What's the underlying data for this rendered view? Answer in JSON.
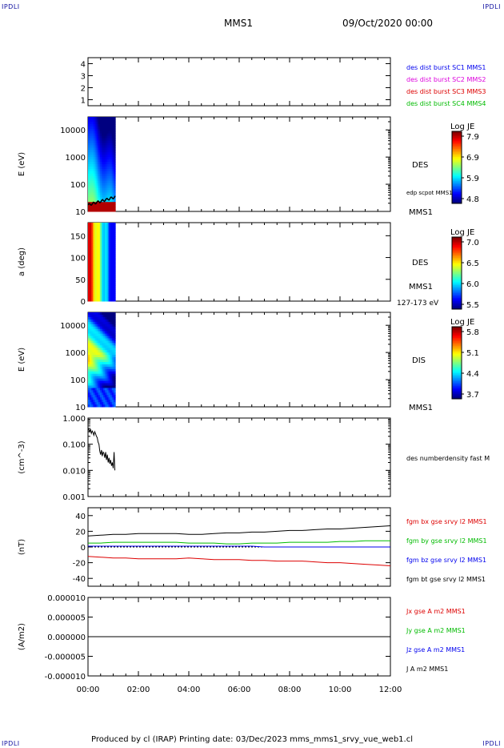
{
  "corner_label": "IPDLI",
  "header": {
    "spacecraft": "MMS1",
    "date": "09/Oct/2020 00:00"
  },
  "footer": "Produced by cl (IRAP)   Printing date: 03/Dec/2023   mms_mms1_srvy_vue_web1.cl",
  "chart_data": [
    {
      "type": "line",
      "panel": "spacecraft coverage",
      "yticks": [
        "1",
        "2",
        "3",
        "4"
      ],
      "ylim": [
        0.5,
        4.5
      ],
      "legend": [
        {
          "name": "des dist burst SC1 MMS1",
          "color": "#0000ee"
        },
        {
          "name": "des dist burst SC2 MMS2",
          "color": "#dd00dd"
        },
        {
          "name": "des dist burst SC3 MMS3",
          "color": "#dd0000"
        },
        {
          "name": "des dist burst SC4 MMS4",
          "color": "#00bb00"
        }
      ]
    },
    {
      "type": "heatmap",
      "panel": "DES energy spectrogram",
      "ylabel": "E (eV)",
      "yticks": [
        "10",
        "100",
        "1000",
        "10000"
      ],
      "ylog": true,
      "ylim": [
        10,
        30000
      ],
      "x_range": [
        "00:00",
        "01:05"
      ],
      "label": "DES",
      "overlay": "edp scpot MMS1",
      "spacecraft": "MMS1",
      "colorbar": {
        "title": "Log JE",
        "ticks": [
          "7.9",
          "6.9",
          "5.9",
          "4.8"
        ]
      }
    },
    {
      "type": "heatmap",
      "panel": "DES pitch angle",
      "ylabel": "a (deg)",
      "yticks": [
        "0",
        "50",
        "100",
        "150"
      ],
      "ylim": [
        0,
        180
      ],
      "x_range": [
        "00:00",
        "01:05"
      ],
      "label": "DES",
      "spacecraft": "MMS1",
      "energy_band": "127-173 eV",
      "colorbar": {
        "title": "Log JE",
        "ticks": [
          "7.0",
          "6.5",
          "6.0",
          "5.5"
        ]
      }
    },
    {
      "type": "heatmap",
      "panel": "DIS energy spectrogram",
      "ylabel": "E (eV)",
      "yticks": [
        "10",
        "100",
        "1000",
        "10000"
      ],
      "ylog": true,
      "ylim": [
        10,
        30000
      ],
      "x_range": [
        "00:00",
        "01:05"
      ],
      "label": "DIS",
      "spacecraft": "MMS1",
      "colorbar": {
        "title": "Log JE",
        "ticks": [
          "5.8",
          "5.1",
          "4.4",
          "3.7"
        ]
      }
    },
    {
      "type": "line",
      "panel": "density",
      "ylabel": "(cm^-3)",
      "yticks": [
        "0.001",
        "0.010",
        "0.100",
        "1.000"
      ],
      "ylog": true,
      "ylim": [
        0.001,
        1.0
      ],
      "series": [
        {
          "name": "des numberdensity fast M",
          "color": "#000000",
          "x_min": [
            0,
            2,
            4,
            6,
            8,
            10,
            12,
            14,
            16,
            18,
            20,
            22,
            24,
            26,
            28,
            30,
            32,
            34,
            36,
            38,
            40,
            42,
            44,
            46,
            48,
            50,
            52,
            54,
            56,
            58,
            60,
            62,
            64
          ],
          "values": [
            0.42,
            0.36,
            0.3,
            0.38,
            0.26,
            0.32,
            0.28,
            0.22,
            0.3,
            0.25,
            0.2,
            0.18,
            0.12,
            0.1,
            0.055,
            0.04,
            0.06,
            0.035,
            0.05,
            0.045,
            0.03,
            0.05,
            0.025,
            0.04,
            0.02,
            0.03,
            0.018,
            0.025,
            0.015,
            0.02,
            0.012,
            0.05,
            0.01
          ]
        }
      ]
    },
    {
      "type": "line",
      "panel": "magnetic field",
      "ylabel": "(nT)",
      "yticks": [
        "-40",
        "-20",
        "0",
        "20",
        "40"
      ],
      "ylim": [
        -50,
        50
      ],
      "x_hours": [
        0,
        0.5,
        1,
        1.5,
        2,
        2.5,
        3,
        3.5,
        4,
        4.5,
        5,
        5.5,
        6,
        6.5,
        7,
        7.5,
        8,
        8.5,
        9,
        9.5,
        10,
        10.5,
        11,
        11.5,
        12
      ],
      "series": [
        {
          "name": "fgm bx gse srvy l2 MMS1",
          "color": "#dd0000",
          "values": [
            -12,
            -13,
            -14,
            -14,
            -15,
            -15,
            -15,
            -15,
            -14,
            -15,
            -16,
            -16,
            -16,
            -17,
            -17,
            -18,
            -18,
            -18,
            -19,
            -20,
            -20,
            -21,
            -22,
            -23,
            -24
          ]
        },
        {
          "name": "fgm by gse srvy l2 MMS1",
          "color": "#00bb00",
          "values": [
            5,
            5,
            6,
            6,
            6,
            6,
            6,
            6,
            5,
            5,
            5,
            4,
            4,
            5,
            5,
            5,
            6,
            6,
            6,
            6,
            7,
            7,
            8,
            8,
            8
          ]
        },
        {
          "name": "fgm bz gse srvy l2 MMS1",
          "color": "#0000ee",
          "values": [
            1,
            1,
            1,
            1,
            1,
            1,
            1,
            1,
            1,
            1,
            1,
            1,
            1,
            1,
            0,
            0,
            0,
            0,
            0,
            0,
            0,
            0,
            0,
            0,
            0
          ]
        },
        {
          "name": "fgm bt gse srvy l2 MMS1",
          "color": "#000000",
          "values": [
            14,
            15,
            16,
            16,
            17,
            17,
            17,
            17,
            16,
            16,
            17,
            18,
            18,
            19,
            19,
            20,
            21,
            21,
            22,
            23,
            23,
            24,
            25,
            26,
            27
          ]
        }
      ]
    },
    {
      "type": "line",
      "panel": "current density",
      "ylabel": "(A/m2)",
      "yticks": [
        "-0.000010",
        "-0.000005",
        "0.000000",
        "0.000005",
        "0.000010"
      ],
      "ylim": [
        -1e-05,
        1e-05
      ],
      "legend": [
        {
          "name": "Jx gse A m2 MMS1",
          "color": "#dd0000"
        },
        {
          "name": "Jy gse A m2 MMS1",
          "color": "#00bb00"
        },
        {
          "name": "Jz gse A m2 MMS1",
          "color": "#0000ee"
        },
        {
          "name": "J A m2 MMS1",
          "color": "#000000"
        }
      ]
    }
  ],
  "time_axis": {
    "ticks": [
      "00:00",
      "02:00",
      "04:00",
      "06:00",
      "08:00",
      "10:00",
      "12:00"
    ]
  }
}
